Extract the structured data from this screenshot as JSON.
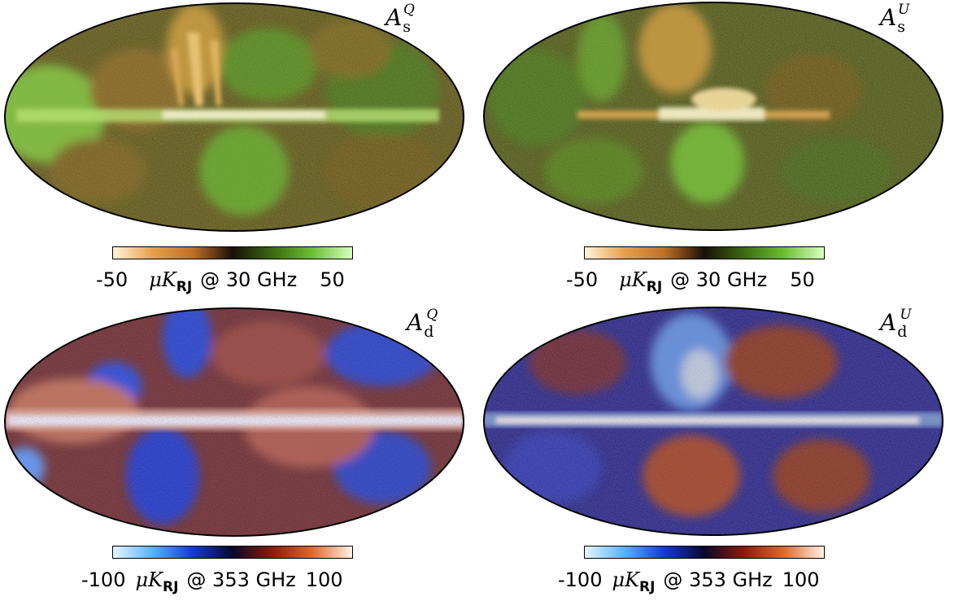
{
  "panels": [
    {
      "id": "sync-q",
      "label": {
        "main": "A",
        "sub": "s",
        "sup": "Q"
      },
      "colorbar": {
        "min_label": "-50",
        "unit": "μK",
        "unit_sub": "RJ",
        "freq_label": "@ 30 GHz",
        "max_label": "50",
        "stops": [
          "#fff3dc",
          "#e8a048",
          "#c07026",
          "#1a1008",
          "#3c6a10",
          "#6cc030",
          "#d8ffc0"
        ]
      }
    },
    {
      "id": "sync-u",
      "label": {
        "main": "A",
        "sub": "s",
        "sup": "U"
      },
      "colorbar": {
        "min_label": "-50",
        "unit": "μK",
        "unit_sub": "RJ",
        "freq_label": "@ 30 GHz",
        "max_label": "50",
        "stops": [
          "#fff3dc",
          "#e8a048",
          "#c07026",
          "#1a1008",
          "#3c6a10",
          "#6cc030",
          "#d8ffc0"
        ]
      }
    },
    {
      "id": "dust-q",
      "label": {
        "main": "A",
        "sub": "d",
        "sup": "Q"
      },
      "colorbar": {
        "min_label": "-100",
        "unit": "μK",
        "unit_sub": "RJ",
        "freq_label": "@ 353 GHz",
        "max_label": "100",
        "stops": [
          "#e6f6ff",
          "#5ab0ff",
          "#1438d8",
          "#08082a",
          "#8a1c0c",
          "#dc6a32",
          "#fff2e4"
        ]
      }
    },
    {
      "id": "dust-u",
      "label": {
        "main": "A",
        "sub": "d",
        "sup": "U"
      },
      "colorbar": {
        "min_label": "-100",
        "unit": "μK",
        "unit_sub": "RJ",
        "freq_label": "@ 353 GHz",
        "max_label": "100",
        "stops": [
          "#e6f6ff",
          "#5ab0ff",
          "#1438d8",
          "#08082a",
          "#8a1c0c",
          "#dc6a32",
          "#fff2e4"
        ]
      }
    }
  ],
  "colors": {
    "sync_base": "#4e4c1c",
    "sync_orange": "#d88a3c",
    "sync_green": "#6cc836",
    "sync_white": "#fff8e8",
    "dust_blue": "#1c36c8",
    "dust_light_blue": "#8ec8ff",
    "dust_red": "#b0401c",
    "dust_white": "#fff4ec"
  }
}
